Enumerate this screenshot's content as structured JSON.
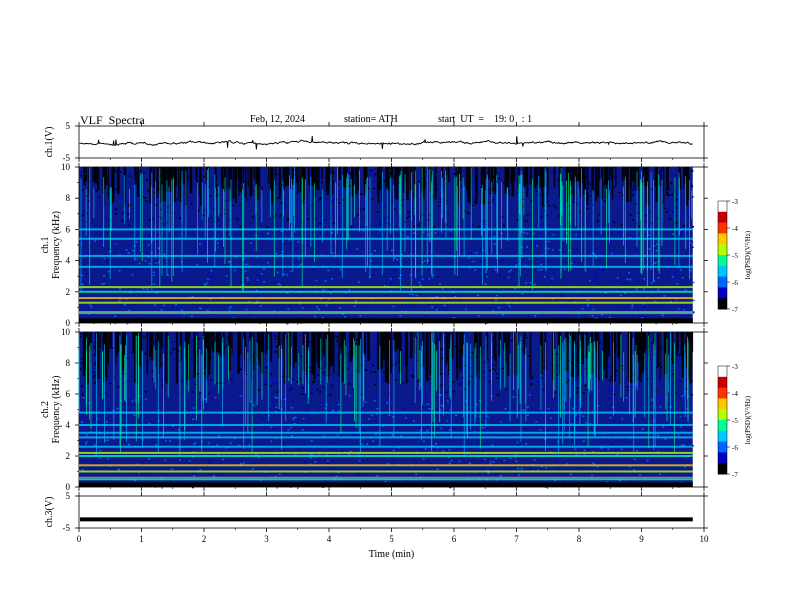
{
  "header": {
    "title": "VLF  Spectra",
    "date": "Feb. 12, 2024",
    "station": "station= ATH",
    "start_ut": "start  UT  =    19: 0   : 1"
  },
  "chart_data": [
    {
      "type": "line",
      "panel": "ch1-waveform",
      "ylabel": "ch.1(V)",
      "ylim": [
        -5,
        5
      ],
      "yticks": [
        5,
        -5
      ],
      "xlim": [
        0,
        10
      ],
      "x_end": 9.82,
      "baseline": -0.3,
      "line_color": "#000000"
    },
    {
      "type": "heatmap",
      "panel": "ch1-spectrogram",
      "ylabel": "ch.1\nFrequency  (kHz)",
      "ylim": [
        0,
        10
      ],
      "yticks": [
        0,
        2,
        4,
        6,
        8,
        10
      ],
      "xlim": [
        0,
        10
      ],
      "x_end": 9.82,
      "background_color": "#0a1a8c",
      "bright_bands_khz": [
        0.7,
        1.3,
        1.6,
        2.0,
        2.3,
        3.6,
        4.3,
        5.4,
        6.0
      ],
      "colorbar": {
        "label": "log(PSD)(V²/Hz)",
        "range": [
          -7,
          -3
        ],
        "ticks": [
          -3,
          -4,
          -5,
          -6,
          -7
        ]
      }
    },
    {
      "type": "heatmap",
      "panel": "ch2-spectrogram",
      "ylabel": "ch.2\nFrequency  (kHz)",
      "ylim": [
        0,
        10
      ],
      "yticks": [
        0,
        2,
        4,
        6,
        8,
        10
      ],
      "xlim": [
        0,
        10
      ],
      "x_end": 9.82,
      "background_color": "#0a1a8c",
      "bright_bands_khz": [
        0.5,
        1.0,
        1.4,
        2.0,
        2.2,
        2.6,
        3.2,
        3.5,
        4.0,
        4.8
      ],
      "colorbar": {
        "label": "log(PSD)(V²/Hz)",
        "range": [
          -7,
          -3
        ],
        "ticks": [
          -3,
          -4,
          -5,
          -6,
          -7
        ]
      }
    },
    {
      "type": "line",
      "panel": "ch3-waveform",
      "ylabel": "ch.3(V)",
      "ylim": [
        -5,
        5
      ],
      "yticks": [
        5,
        -5
      ],
      "xlim": [
        0,
        10
      ],
      "x_end": 9.82,
      "baseline": -2.3,
      "line_color": "#000000"
    }
  ],
  "xaxis": {
    "label": "Time  (min)",
    "ticks": [
      0,
      1,
      2,
      3,
      4,
      5,
      6,
      7,
      8,
      9,
      10
    ],
    "range": [
      0,
      10
    ]
  },
  "colormap": [
    "#000000",
    "#0000c8",
    "#0064ff",
    "#00c8ff",
    "#00ff96",
    "#b4ff00",
    "#ffc800",
    "#ff3200",
    "#c80000",
    "#ffffff"
  ]
}
